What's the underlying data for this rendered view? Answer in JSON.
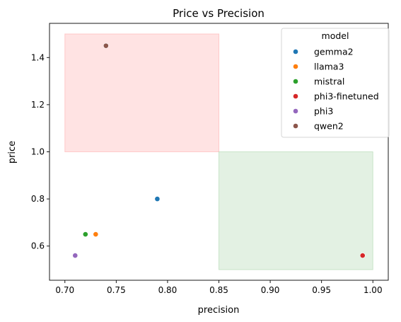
{
  "chart_data": {
    "type": "scatter",
    "title": "Price vs Precision",
    "xlabel": "precision",
    "ylabel": "price",
    "xlim": [
      0.685,
      1.015
    ],
    "ylim": [
      0.455,
      1.545
    ],
    "xticks": [
      0.7,
      0.75,
      0.8,
      0.85,
      0.9,
      0.95,
      1.0
    ],
    "xtick_labels": [
      "0.70",
      "0.75",
      "0.80",
      "0.85",
      "0.90",
      "0.95",
      "1.00"
    ],
    "yticks": [
      0.6,
      0.8,
      1.0,
      1.2,
      1.4
    ],
    "ytick_labels": [
      "0.6",
      "0.8",
      "1.0",
      "1.2",
      "1.4"
    ],
    "grid": false,
    "legend": {
      "title": "model",
      "placement": "top-right"
    },
    "regions": [
      {
        "x": [
          0.7,
          0.85
        ],
        "y": [
          1.0,
          1.5
        ],
        "color": "#ff9999",
        "opacity": 0.28
      },
      {
        "x": [
          0.85,
          1.0
        ],
        "y": [
          0.5,
          1.0
        ],
        "color": "#99cc99",
        "opacity": 0.28
      }
    ],
    "series": [
      {
        "name": "gemma2",
        "color": "#1f77b4",
        "points": [
          [
            0.79,
            0.8
          ]
        ]
      },
      {
        "name": "llama3",
        "color": "#ff7f0e",
        "points": [
          [
            0.73,
            0.65
          ]
        ]
      },
      {
        "name": "mistral",
        "color": "#2ca02c",
        "points": [
          [
            0.72,
            0.65
          ]
        ]
      },
      {
        "name": "phi3-finetuned",
        "color": "#d62728",
        "points": [
          [
            0.99,
            0.56
          ]
        ]
      },
      {
        "name": "phi3",
        "color": "#9467bd",
        "points": [
          [
            0.71,
            0.56
          ]
        ]
      },
      {
        "name": "qwen2",
        "color": "#8c564b",
        "points": [
          [
            0.74,
            1.45
          ]
        ]
      }
    ]
  }
}
